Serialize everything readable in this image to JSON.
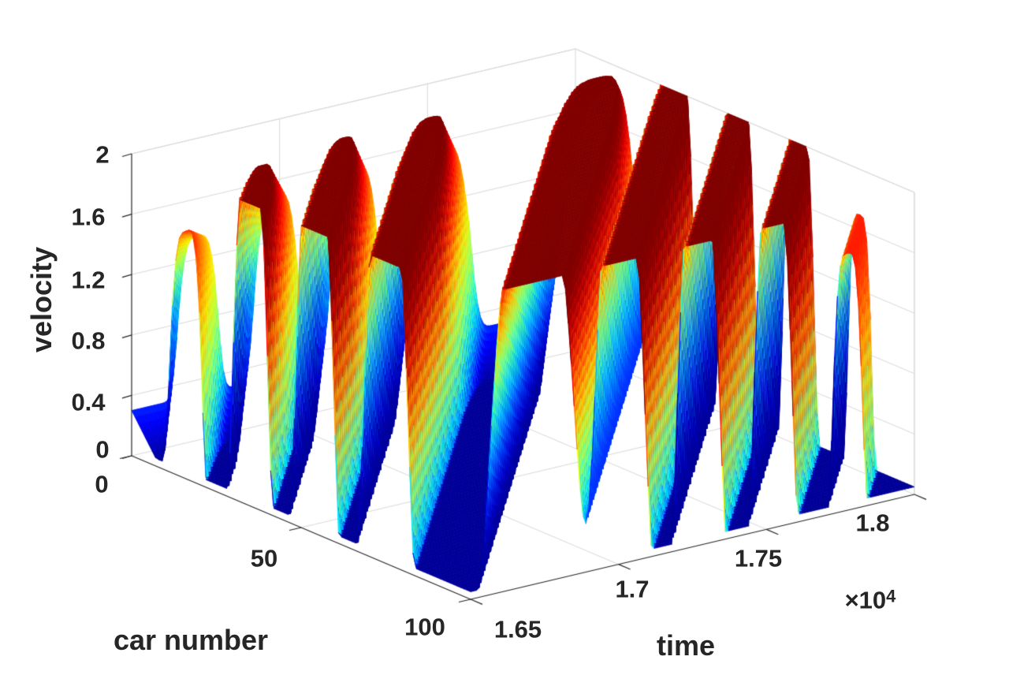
{
  "figure": {
    "background": "#ffffff",
    "axis_color": "#262626",
    "grid_color": "#d9d9d9"
  },
  "axes": {
    "z": {
      "label": "velocity",
      "ticks": [
        "0",
        "0.4",
        "0.8",
        "1.2",
        "1.6",
        "2"
      ]
    },
    "x": {
      "label": "car number",
      "ticks": [
        "0",
        "50",
        "100"
      ]
    },
    "y": {
      "label": "time",
      "ticks": [
        "1.65",
        "1.7",
        "1.75",
        "1.8"
      ],
      "multiplier_base": "×10",
      "multiplier_exponent": "4"
    }
  },
  "chart_data": {
    "type": "surface",
    "title": "",
    "xlabel": "car number",
    "ylabel": "time",
    "zlabel": "velocity",
    "x_range": [
      0,
      100
    ],
    "y_range": [
      16500,
      18000
    ],
    "z_range": [
      0,
      2
    ],
    "x_tick_values": [
      0,
      50,
      100
    ],
    "y_tick_values": [
      16500,
      17000,
      17500,
      18000
    ],
    "y_tick_display": [
      "1.65",
      "1.7",
      "1.75",
      "1.8"
    ],
    "y_tick_multiplier": "×10^4",
    "z_tick_values": [
      0,
      0.4,
      0.8,
      1.2,
      1.6,
      2
    ],
    "colormap": "jet",
    "color_limits": [
      0,
      2
    ],
    "grid": true,
    "legend": "none",
    "description": "MATLAB-style 3D surface of stop-and-go traffic waves: velocity v(car,t) oscillates between flat dark-blue jams (v clipped near 0.05) and flat dark-red free-flow plateaus (v clipped at 2). Wave crests propagate upstream (crest car number decreases as time increases). One extra-wide high-speed plateau dominates the center; the first and last waves are weaker (caps near v=1.5-1.7); low flat basins sit at the front-left corner (car 0-12, t=1.65e4) and the far right corner (car 100, t=1.8e4).",
    "surface_model": {
      "wave_coordinate": "u = car + (t - 16500) / time_per_car",
      "time_per_car": 14,
      "crest_centers_u": [
        16,
        35,
        54,
        75,
        115,
        136,
        155,
        173,
        191
      ],
      "crest_widths_u": [
        5,
        5.5,
        6,
        7,
        11,
        6.5,
        5.5,
        5,
        4
      ],
      "crest_amplitudes": [
        0.8,
        0.95,
        1,
        1,
        1,
        1,
        0.95,
        0.9,
        0.7
      ],
      "base_level": -0.4,
      "bump_scale": 3.0,
      "bump_shape": "exp(-x^4)",
      "growth_above": {
        "offset": 0.35,
        "per_car": 0.018182,
        "max": 1
      },
      "growth_below": {
        "offset": 0.5,
        "per_car": 0.025,
        "max": 1
      },
      "clip": [
        0.05,
        2
      ]
    }
  }
}
